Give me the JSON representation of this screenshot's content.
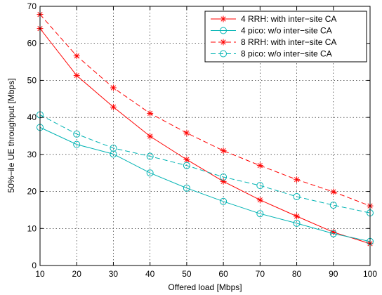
{
  "chart_data": {
    "type": "line",
    "xlabel": "Offered load [Mbps]",
    "ylabel": "50%−ile UE throughput [Mbps]",
    "xlim": [
      10,
      100
    ],
    "ylim": [
      0,
      70
    ],
    "xticks": [
      10,
      20,
      30,
      40,
      50,
      60,
      70,
      80,
      90,
      100
    ],
    "yticks": [
      0,
      10,
      20,
      30,
      40,
      50,
      60,
      70
    ],
    "grid": true,
    "legend_position": "top-right",
    "x": [
      10,
      20,
      30,
      40,
      50,
      60,
      70,
      80,
      90,
      100
    ],
    "series": [
      {
        "name": "4 RRH: with inter−site CA",
        "color": "#ff0000",
        "line_style": "solid",
        "marker": "star",
        "values": [
          64.0,
          51.3,
          42.8,
          34.9,
          28.6,
          22.7,
          17.7,
          13.3,
          9.0,
          5.9
        ]
      },
      {
        "name": "4 pico: w/o inter−site CA",
        "color": "#00b3b3",
        "line_style": "solid",
        "marker": "circle",
        "values": [
          37.3,
          32.7,
          30.1,
          25.0,
          20.9,
          17.3,
          14.0,
          11.4,
          8.6,
          6.5
        ]
      },
      {
        "name": "8 RRH: with inter−site CA",
        "color": "#ff0000",
        "line_style": "dashed",
        "marker": "star",
        "values": [
          67.8,
          56.6,
          48.0,
          41.1,
          35.8,
          31.0,
          27.0,
          23.2,
          19.9,
          16.1
        ]
      },
      {
        "name": "8 pico: w/o inter−site CA",
        "color": "#00b3b3",
        "line_style": "dashed",
        "marker": "circle",
        "values": [
          40.7,
          35.5,
          31.7,
          29.5,
          27.0,
          23.9,
          21.6,
          18.6,
          16.3,
          14.2
        ]
      }
    ]
  }
}
